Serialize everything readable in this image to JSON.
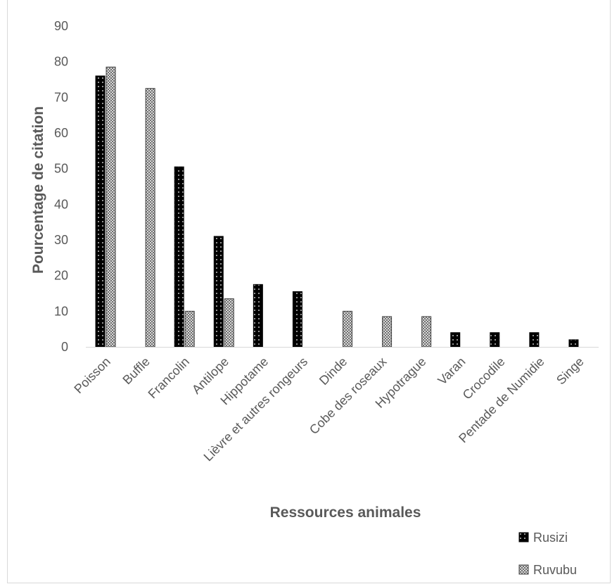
{
  "chart_data": {
    "type": "bar",
    "title": "",
    "xlabel": "Ressources animales",
    "ylabel": "Pourcentage de citation",
    "ylim": [
      0,
      90
    ],
    "yticks": [
      0,
      10,
      20,
      30,
      40,
      50,
      60,
      70,
      80,
      90
    ],
    "grid": false,
    "legend_position": "bottom-right",
    "categories": [
      "Poisson",
      "Buffle",
      "Francolin",
      "Antilope",
      "Hippotame",
      "Lièvre et autres rongeurs",
      "Dinde",
      "Cobe des roseaux",
      "Hypotrague",
      "Varan",
      "Crocodile",
      "Pentade de Numidie",
      "Singe"
    ],
    "series": [
      {
        "name": "Rusizi",
        "color": "#000000",
        "pattern": "dots",
        "values": [
          76,
          0,
          50.5,
          31,
          17.5,
          15.5,
          0,
          0,
          0,
          4,
          4,
          4,
          2
        ]
      },
      {
        "name": "Ruvubu",
        "color": "#8c8c8c",
        "pattern": "checker",
        "values": [
          78.5,
          72.5,
          10,
          13.5,
          0,
          0,
          10,
          8.5,
          8.5,
          0,
          0,
          0,
          0
        ]
      }
    ]
  }
}
